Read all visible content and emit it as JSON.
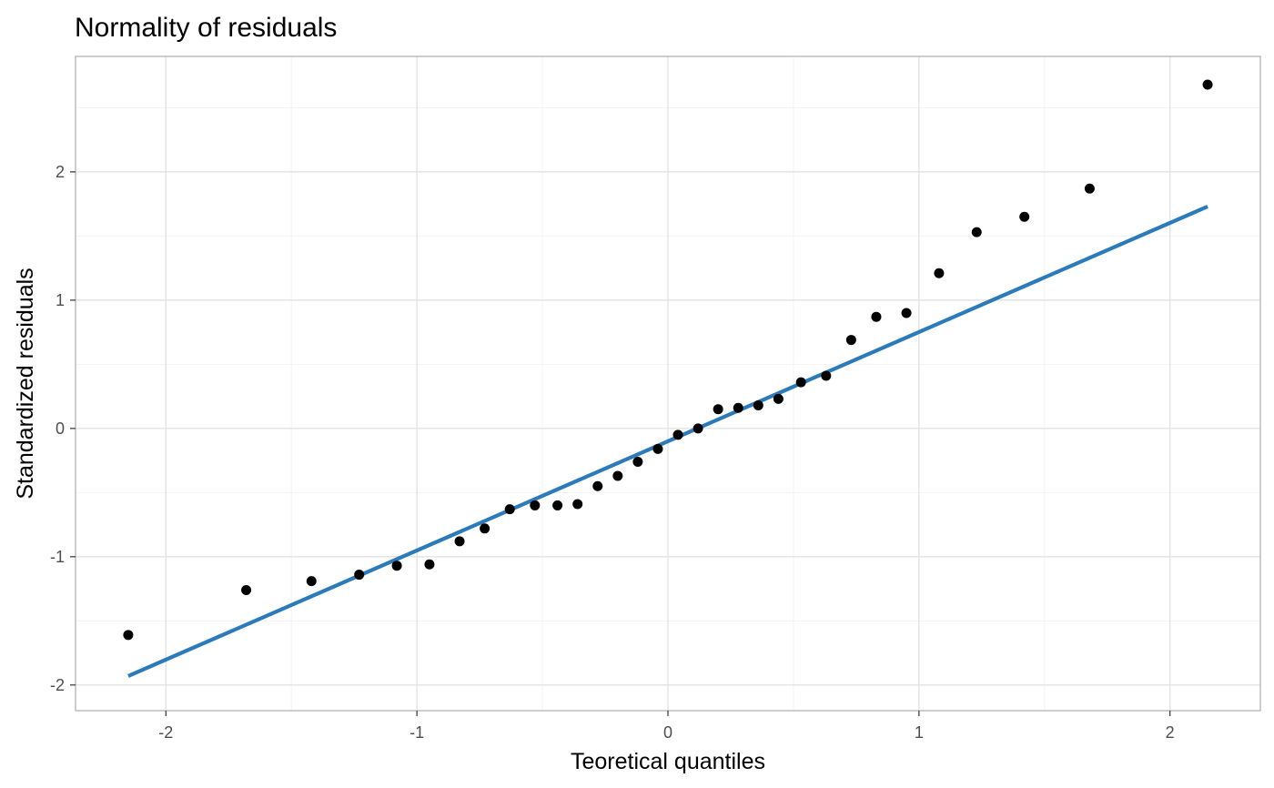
{
  "chart_data": {
    "type": "scatter",
    "title": "Normality of residuals",
    "xlabel": "Teoretical quantiles",
    "ylabel": "Standardized residuals",
    "xlim": [
      -2.36,
      2.36
    ],
    "ylim": [
      -2.2,
      2.9
    ],
    "x_ticks": [
      -2,
      -1,
      0,
      1,
      2
    ],
    "y_ticks": [
      -2,
      -1,
      0,
      1,
      2
    ],
    "x_tick_labels": [
      "-2",
      "-1",
      "0",
      "1",
      "2"
    ],
    "y_tick_labels": [
      "-2",
      "-1",
      "0",
      "1",
      "2"
    ],
    "grid": true,
    "points": [
      {
        "x": -2.15,
        "y": -1.61
      },
      {
        "x": -1.68,
        "y": -1.26
      },
      {
        "x": -1.42,
        "y": -1.19
      },
      {
        "x": -1.23,
        "y": -1.14
      },
      {
        "x": -1.08,
        "y": -1.07
      },
      {
        "x": -0.95,
        "y": -1.06
      },
      {
        "x": -0.83,
        "y": -0.88
      },
      {
        "x": -0.73,
        "y": -0.78
      },
      {
        "x": -0.63,
        "y": -0.63
      },
      {
        "x": -0.53,
        "y": -0.6
      },
      {
        "x": -0.44,
        "y": -0.6
      },
      {
        "x": -0.36,
        "y": -0.59
      },
      {
        "x": -0.28,
        "y": -0.45
      },
      {
        "x": -0.2,
        "y": -0.37
      },
      {
        "x": -0.12,
        "y": -0.26
      },
      {
        "x": -0.04,
        "y": -0.16
      },
      {
        "x": 0.04,
        "y": -0.05
      },
      {
        "x": 0.12,
        "y": 0.0
      },
      {
        "x": 0.2,
        "y": 0.15
      },
      {
        "x": 0.28,
        "y": 0.16
      },
      {
        "x": 0.36,
        "y": 0.18
      },
      {
        "x": 0.44,
        "y": 0.23
      },
      {
        "x": 0.53,
        "y": 0.36
      },
      {
        "x": 0.63,
        "y": 0.41
      },
      {
        "x": 0.73,
        "y": 0.69
      },
      {
        "x": 0.83,
        "y": 0.87
      },
      {
        "x": 0.95,
        "y": 0.9
      },
      {
        "x": 1.08,
        "y": 1.21
      },
      {
        "x": 1.23,
        "y": 1.53
      },
      {
        "x": 1.42,
        "y": 1.65
      },
      {
        "x": 1.68,
        "y": 1.87
      },
      {
        "x": 2.15,
        "y": 2.68
      }
    ],
    "reference_line": {
      "x": [
        -2.15,
        2.15
      ],
      "y": [
        -1.93,
        1.73
      ]
    },
    "colors": {
      "points": "#000000",
      "line": "#2b7bba",
      "background": "#ffffff"
    }
  }
}
